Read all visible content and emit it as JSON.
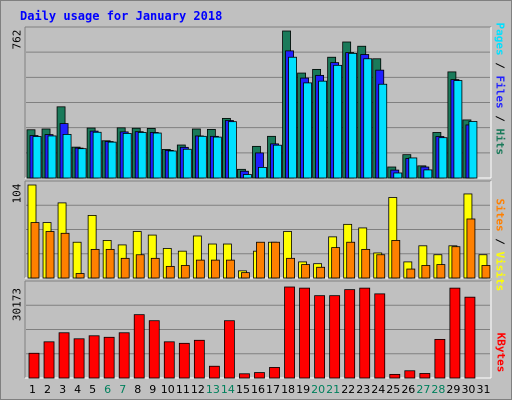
{
  "title": "Daily usage for January 2018",
  "colors": {
    "hits": "#1a7a5a",
    "files": "#2020ff",
    "pages": "#00e0ff",
    "visits": "#ffff00",
    "sites": "#ff8000",
    "kbytes": "#ff0000",
    "weekend_label": "#00805c"
  },
  "chart_data": [
    {
      "type": "bar",
      "panel": "top",
      "ymax_label": "762",
      "categories": [
        "1",
        "2",
        "3",
        "4",
        "5",
        "6",
        "7",
        "8",
        "9",
        "10",
        "11",
        "12",
        "13",
        "14",
        "15",
        "16",
        "17",
        "18",
        "19",
        "20",
        "21",
        "22",
        "23",
        "24",
        "25",
        "26",
        "27",
        "28",
        "29",
        "30",
        "31"
      ],
      "weekend_days": [
        "6",
        "7",
        "13",
        "14",
        "20",
        "21",
        "27",
        "28"
      ],
      "ylim": [
        0,
        762
      ],
      "series": [
        {
          "name": "Hits",
          "values": [
            250,
            254,
            369,
            160,
            259,
            193,
            260,
            258,
            257,
            148,
            171,
            254,
            252,
            309,
            45,
            164,
            216,
            762,
            544,
            563,
            626,
            705,
            683,
            618,
            57,
            121,
            63,
            236,
            550,
            301,
            0
          ]
        },
        {
          "name": "Files",
          "values": [
            220,
            225,
            282,
            155,
            243,
            189,
            239,
            240,
            236,
            143,
            159,
            218,
            216,
            298,
            35,
            130,
            177,
            659,
            518,
            532,
            598,
            650,
            640,
            559,
            41,
            101,
            57,
            215,
            510,
            275,
            0
          ]
        },
        {
          "name": "Pages",
          "values": [
            215,
            218,
            226,
            152,
            237,
            186,
            231,
            236,
            233,
            140,
            149,
            216,
            212,
            292,
            18,
            55,
            170,
            626,
            493,
            502,
            584,
            646,
            618,
            486,
            26,
            104,
            42,
            209,
            505,
            293,
            0
          ]
        }
      ],
      "legend": [
        "Pages",
        "Files",
        "Hits"
      ]
    },
    {
      "type": "bar",
      "panel": "middle",
      "ymax_label": "104",
      "categories": [
        "1",
        "2",
        "3",
        "4",
        "5",
        "6",
        "7",
        "8",
        "9",
        "10",
        "11",
        "12",
        "13",
        "14",
        "15",
        "16",
        "17",
        "18",
        "19",
        "20",
        "21",
        "22",
        "23",
        "24",
        "25",
        "26",
        "27",
        "28",
        "29",
        "30",
        "31"
      ],
      "ylim": [
        0,
        104
      ],
      "series": [
        {
          "name": "Visits",
          "values": [
            104,
            62,
            84,
            40,
            70,
            42,
            37,
            52,
            48,
            33,
            30,
            47,
            38,
            38,
            8,
            30,
            40,
            52,
            18,
            16,
            46,
            60,
            56,
            28,
            90,
            18,
            36,
            26,
            36,
            94,
            26
          ]
        },
        {
          "name": "Sites",
          "values": [
            62,
            52,
            50,
            5,
            32,
            32,
            22,
            26,
            22,
            13,
            14,
            20,
            20,
            20,
            6,
            40,
            40,
            22,
            15,
            12,
            34,
            40,
            32,
            26,
            42,
            10,
            14,
            15,
            35,
            66,
            14
          ]
        }
      ],
      "legend": [
        "Sites",
        "Visits"
      ]
    },
    {
      "type": "bar",
      "panel": "bottom",
      "ymax_label": "30173",
      "categories": [
        "1",
        "2",
        "3",
        "4",
        "5",
        "6",
        "7",
        "8",
        "9",
        "10",
        "11",
        "12",
        "13",
        "14",
        "15",
        "16",
        "17",
        "18",
        "19",
        "20",
        "21",
        "22",
        "23",
        "24",
        "25",
        "26",
        "27",
        "28",
        "29",
        "30",
        "31"
      ],
      "ylim": [
        0,
        30173
      ],
      "series": [
        {
          "name": "KBytes",
          "values": [
            8200,
            12000,
            15000,
            13000,
            14000,
            13500,
            15000,
            21000,
            19000,
            12000,
            11500,
            12500,
            3900,
            19000,
            1400,
            1800,
            3500,
            30173,
            29800,
            27300,
            27300,
            29300,
            29800,
            27900,
            1200,
            2400,
            1500,
            12800,
            29800,
            26800,
            0
          ]
        }
      ],
      "legend": [
        "KBytes"
      ]
    }
  ]
}
